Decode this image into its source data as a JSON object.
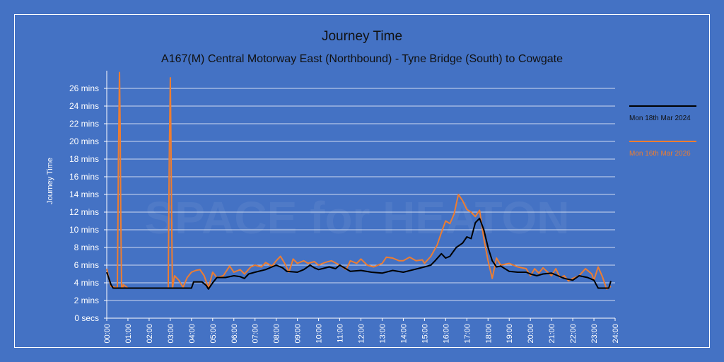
{
  "chart_data": {
    "type": "line",
    "title": "Journey Time",
    "subtitle": "A167(M) Central Motorway East (Northbound) - Tyne Bridge (South) to Cowgate",
    "ylabel": "Journey Time",
    "xlabel": "",
    "ylim": [
      0,
      28
    ],
    "yticks": [
      0,
      2,
      4,
      6,
      8,
      10,
      12,
      14,
      16,
      18,
      20,
      22,
      24,
      26
    ],
    "ytick_labels": [
      "0 secs",
      "2 mins",
      "4 mins",
      "6 mins",
      "8 mins",
      "10 mins",
      "12 mins",
      "14 mins",
      "16 mins",
      "18 mins",
      "20 mins",
      "22 mins",
      "24 mins",
      "26 mins"
    ],
    "xlim": [
      0,
      24
    ],
    "xticks": [
      0,
      1,
      2,
      3,
      4,
      5,
      6,
      7,
      8,
      9,
      10,
      11,
      12,
      13,
      14,
      15,
      16,
      17,
      18,
      19,
      20,
      21,
      22,
      23,
      24
    ],
    "xtick_labels": [
      "00:00",
      "01:00",
      "02:00",
      "03:00",
      "04:00",
      "05:00",
      "06:00",
      "07:00",
      "08:00",
      "09:00",
      "10:00",
      "11:00",
      "12:00",
      "13:00",
      "14:00",
      "15:00",
      "16:00",
      "17:00",
      "18:00",
      "19:00",
      "20:00",
      "21:00",
      "22:00",
      "23:00",
      "24:00"
    ],
    "grid": true,
    "legend_position": "right",
    "watermark": "SPACE for HEATON",
    "series": [
      {
        "name": "Mon 18th Mar 2024",
        "color": "#000000",
        "points": [
          [
            0,
            5.2
          ],
          [
            0.2,
            3.8
          ],
          [
            0.3,
            3.4
          ],
          [
            1,
            3.4
          ],
          [
            2,
            3.4
          ],
          [
            3,
            3.4
          ],
          [
            3.5,
            3.4
          ],
          [
            4,
            3.4
          ],
          [
            4.1,
            4.1
          ],
          [
            4.5,
            4.1
          ],
          [
            4.7,
            3.7
          ],
          [
            4.8,
            3.3
          ],
          [
            5,
            4
          ],
          [
            5.2,
            4.6
          ],
          [
            5.6,
            4.6
          ],
          [
            6,
            4.8
          ],
          [
            6.3,
            4.7
          ],
          [
            6.5,
            4.5
          ],
          [
            6.7,
            5
          ],
          [
            7,
            5.2
          ],
          [
            7.5,
            5.5
          ],
          [
            8,
            6
          ],
          [
            8.3,
            5.7
          ],
          [
            8.5,
            5.3
          ],
          [
            9,
            5.2
          ],
          [
            9.3,
            5.5
          ],
          [
            9.6,
            6
          ],
          [
            9.8,
            5.7
          ],
          [
            10,
            5.5
          ],
          [
            10.5,
            5.8
          ],
          [
            10.8,
            5.6
          ],
          [
            11,
            6
          ],
          [
            11.5,
            5.3
          ],
          [
            12,
            5.4
          ],
          [
            12.5,
            5.2
          ],
          [
            13,
            5.1
          ],
          [
            13.5,
            5.4
          ],
          [
            14,
            5.2
          ],
          [
            14.5,
            5.5
          ],
          [
            15,
            5.8
          ],
          [
            15.3,
            6
          ],
          [
            15.5,
            6.5
          ],
          [
            15.8,
            7.3
          ],
          [
            16,
            6.8
          ],
          [
            16.2,
            7
          ],
          [
            16.5,
            8
          ],
          [
            16.8,
            8.5
          ],
          [
            17,
            9.2
          ],
          [
            17.2,
            9
          ],
          [
            17.4,
            10.8
          ],
          [
            17.6,
            11.3
          ],
          [
            17.8,
            10
          ],
          [
            18,
            8
          ],
          [
            18.2,
            6.5
          ],
          [
            18.4,
            5.8
          ],
          [
            18.6,
            5.9
          ],
          [
            19,
            5.3
          ],
          [
            19.4,
            5.2
          ],
          [
            19.8,
            5.2
          ],
          [
            20,
            5
          ],
          [
            20.3,
            4.8
          ],
          [
            20.6,
            5
          ],
          [
            21,
            5.1
          ],
          [
            21.3,
            4.8
          ],
          [
            21.6,
            4.5
          ],
          [
            22,
            4.3
          ],
          [
            22.3,
            4.8
          ],
          [
            22.7,
            4.6
          ],
          [
            23,
            4.3
          ],
          [
            23.2,
            3.4
          ],
          [
            23.5,
            3.4
          ],
          [
            23.7,
            3.4
          ],
          [
            23.8,
            4.2
          ]
        ]
      },
      {
        "name": "Mon 16th Mar 2026",
        "color": "#ed7d31",
        "points": [
          [
            0,
            5.6
          ],
          [
            0.1,
            4.5
          ],
          [
            0.2,
            3.6
          ],
          [
            0.5,
            3.4
          ],
          [
            0.55,
            18
          ],
          [
            0.6,
            27.8
          ],
          [
            0.63,
            22
          ],
          [
            0.66,
            12
          ],
          [
            0.7,
            3.4
          ],
          [
            0.75,
            3.4
          ],
          [
            0.78,
            3.8
          ],
          [
            1,
            3.4
          ],
          [
            2,
            3.4
          ],
          [
            2.9,
            3.4
          ],
          [
            2.95,
            18
          ],
          [
            3,
            27.2
          ],
          [
            3.03,
            20
          ],
          [
            3.06,
            12
          ],
          [
            3.1,
            3.4
          ],
          [
            3.2,
            4.8
          ],
          [
            3.4,
            4.3
          ],
          [
            3.6,
            3.5
          ],
          [
            3.8,
            4.6
          ],
          [
            4,
            5.2
          ],
          [
            4.2,
            5.4
          ],
          [
            4.4,
            5.5
          ],
          [
            4.6,
            4.8
          ],
          [
            4.8,
            3.4
          ],
          [
            5,
            5.2
          ],
          [
            5.2,
            4.6
          ],
          [
            5.5,
            4.8
          ],
          [
            5.8,
            5.9
          ],
          [
            6,
            5.2
          ],
          [
            6.3,
            5.5
          ],
          [
            6.5,
            5
          ],
          [
            6.8,
            5.8
          ],
          [
            7,
            6
          ],
          [
            7.3,
            5.8
          ],
          [
            7.5,
            6.3
          ],
          [
            7.8,
            5.9
          ],
          [
            8,
            6.5
          ],
          [
            8.2,
            7
          ],
          [
            8.4,
            6.2
          ],
          [
            8.6,
            5.2
          ],
          [
            8.8,
            6.7
          ],
          [
            9,
            6.2
          ],
          [
            9.3,
            6.5
          ],
          [
            9.5,
            6.2
          ],
          [
            9.8,
            6.4
          ],
          [
            10,
            6
          ],
          [
            10.3,
            6.3
          ],
          [
            10.6,
            6.5
          ],
          [
            11,
            6
          ],
          [
            11.3,
            5.5
          ],
          [
            11.5,
            6.5
          ],
          [
            11.8,
            6.2
          ],
          [
            12,
            6.7
          ],
          [
            12.3,
            6
          ],
          [
            12.6,
            5.8
          ],
          [
            13,
            6.2
          ],
          [
            13.2,
            6.9
          ],
          [
            13.5,
            6.8
          ],
          [
            13.8,
            6.5
          ],
          [
            14,
            6.5
          ],
          [
            14.3,
            6.9
          ],
          [
            14.6,
            6.5
          ],
          [
            14.9,
            6.6
          ],
          [
            15,
            6.2
          ],
          [
            15.3,
            7
          ],
          [
            15.6,
            8.3
          ],
          [
            15.8,
            9.7
          ],
          [
            16,
            11
          ],
          [
            16.2,
            10.7
          ],
          [
            16.4,
            11.8
          ],
          [
            16.6,
            14
          ],
          [
            16.8,
            13.3
          ],
          [
            17,
            12.3
          ],
          [
            17.2,
            12
          ],
          [
            17.4,
            11.5
          ],
          [
            17.6,
            12.2
          ],
          [
            17.8,
            9
          ],
          [
            18,
            6.5
          ],
          [
            18.2,
            4.5
          ],
          [
            18.4,
            6.8
          ],
          [
            18.6,
            6
          ],
          [
            19,
            6.2
          ],
          [
            19.4,
            5.8
          ],
          [
            19.8,
            5.6
          ],
          [
            20,
            4.8
          ],
          [
            20.2,
            5.6
          ],
          [
            20.4,
            5.1
          ],
          [
            20.6,
            5.7
          ],
          [
            21,
            4.8
          ],
          [
            21.2,
            5.6
          ],
          [
            21.4,
            4.6
          ],
          [
            21.6,
            4.8
          ],
          [
            21.8,
            4.2
          ],
          [
            22,
            4.5
          ],
          [
            22.3,
            4.8
          ],
          [
            22.6,
            5.6
          ],
          [
            22.9,
            5
          ],
          [
            23,
            4.3
          ],
          [
            23.2,
            5.8
          ],
          [
            23.4,
            4.7
          ],
          [
            23.6,
            3.3
          ],
          [
            23.8,
            3.6
          ]
        ]
      }
    ]
  }
}
